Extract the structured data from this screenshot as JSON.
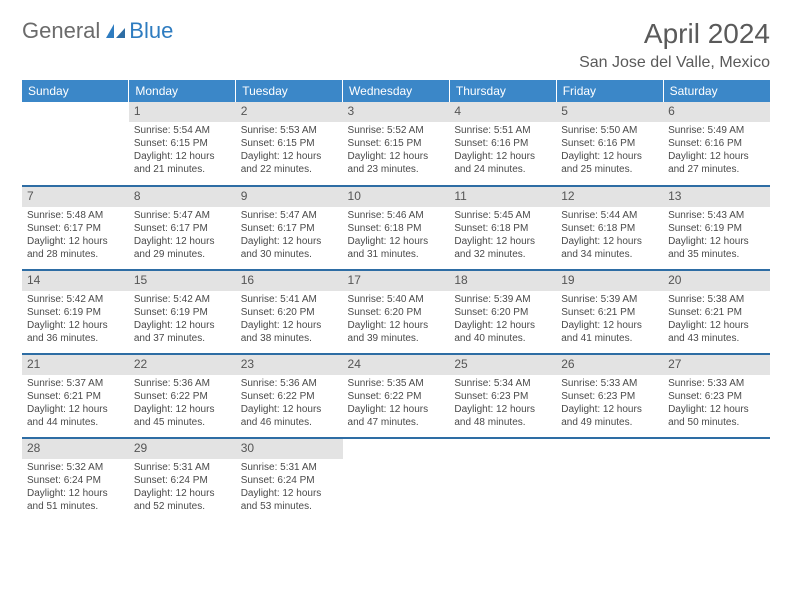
{
  "brand": {
    "part1": "General",
    "part2": "Blue"
  },
  "title": "April 2024",
  "location": "San Jose del Valle, Mexico",
  "colors": {
    "header_bg": "#3b87c8",
    "header_text": "#ffffff",
    "row_border": "#2e6da4",
    "daynum_bg": "#e3e3e3",
    "text": "#4a4a4a",
    "brand_blue": "#2e7cc0",
    "brand_gray": "#6b6b6b"
  },
  "weekdays": [
    "Sunday",
    "Monday",
    "Tuesday",
    "Wednesday",
    "Thursday",
    "Friday",
    "Saturday"
  ],
  "weeks": [
    [
      null,
      {
        "n": "1",
        "sr": "Sunrise: 5:54 AM",
        "ss": "Sunset: 6:15 PM",
        "d1": "Daylight: 12 hours",
        "d2": "and 21 minutes."
      },
      {
        "n": "2",
        "sr": "Sunrise: 5:53 AM",
        "ss": "Sunset: 6:15 PM",
        "d1": "Daylight: 12 hours",
        "d2": "and 22 minutes."
      },
      {
        "n": "3",
        "sr": "Sunrise: 5:52 AM",
        "ss": "Sunset: 6:15 PM",
        "d1": "Daylight: 12 hours",
        "d2": "and 23 minutes."
      },
      {
        "n": "4",
        "sr": "Sunrise: 5:51 AM",
        "ss": "Sunset: 6:16 PM",
        "d1": "Daylight: 12 hours",
        "d2": "and 24 minutes."
      },
      {
        "n": "5",
        "sr": "Sunrise: 5:50 AM",
        "ss": "Sunset: 6:16 PM",
        "d1": "Daylight: 12 hours",
        "d2": "and 25 minutes."
      },
      {
        "n": "6",
        "sr": "Sunrise: 5:49 AM",
        "ss": "Sunset: 6:16 PM",
        "d1": "Daylight: 12 hours",
        "d2": "and 27 minutes."
      }
    ],
    [
      {
        "n": "7",
        "sr": "Sunrise: 5:48 AM",
        "ss": "Sunset: 6:17 PM",
        "d1": "Daylight: 12 hours",
        "d2": "and 28 minutes."
      },
      {
        "n": "8",
        "sr": "Sunrise: 5:47 AM",
        "ss": "Sunset: 6:17 PM",
        "d1": "Daylight: 12 hours",
        "d2": "and 29 minutes."
      },
      {
        "n": "9",
        "sr": "Sunrise: 5:47 AM",
        "ss": "Sunset: 6:17 PM",
        "d1": "Daylight: 12 hours",
        "d2": "and 30 minutes."
      },
      {
        "n": "10",
        "sr": "Sunrise: 5:46 AM",
        "ss": "Sunset: 6:18 PM",
        "d1": "Daylight: 12 hours",
        "d2": "and 31 minutes."
      },
      {
        "n": "11",
        "sr": "Sunrise: 5:45 AM",
        "ss": "Sunset: 6:18 PM",
        "d1": "Daylight: 12 hours",
        "d2": "and 32 minutes."
      },
      {
        "n": "12",
        "sr": "Sunrise: 5:44 AM",
        "ss": "Sunset: 6:18 PM",
        "d1": "Daylight: 12 hours",
        "d2": "and 34 minutes."
      },
      {
        "n": "13",
        "sr": "Sunrise: 5:43 AM",
        "ss": "Sunset: 6:19 PM",
        "d1": "Daylight: 12 hours",
        "d2": "and 35 minutes."
      }
    ],
    [
      {
        "n": "14",
        "sr": "Sunrise: 5:42 AM",
        "ss": "Sunset: 6:19 PM",
        "d1": "Daylight: 12 hours",
        "d2": "and 36 minutes."
      },
      {
        "n": "15",
        "sr": "Sunrise: 5:42 AM",
        "ss": "Sunset: 6:19 PM",
        "d1": "Daylight: 12 hours",
        "d2": "and 37 minutes."
      },
      {
        "n": "16",
        "sr": "Sunrise: 5:41 AM",
        "ss": "Sunset: 6:20 PM",
        "d1": "Daylight: 12 hours",
        "d2": "and 38 minutes."
      },
      {
        "n": "17",
        "sr": "Sunrise: 5:40 AM",
        "ss": "Sunset: 6:20 PM",
        "d1": "Daylight: 12 hours",
        "d2": "and 39 minutes."
      },
      {
        "n": "18",
        "sr": "Sunrise: 5:39 AM",
        "ss": "Sunset: 6:20 PM",
        "d1": "Daylight: 12 hours",
        "d2": "and 40 minutes."
      },
      {
        "n": "19",
        "sr": "Sunrise: 5:39 AM",
        "ss": "Sunset: 6:21 PM",
        "d1": "Daylight: 12 hours",
        "d2": "and 41 minutes."
      },
      {
        "n": "20",
        "sr": "Sunrise: 5:38 AM",
        "ss": "Sunset: 6:21 PM",
        "d1": "Daylight: 12 hours",
        "d2": "and 43 minutes."
      }
    ],
    [
      {
        "n": "21",
        "sr": "Sunrise: 5:37 AM",
        "ss": "Sunset: 6:21 PM",
        "d1": "Daylight: 12 hours",
        "d2": "and 44 minutes."
      },
      {
        "n": "22",
        "sr": "Sunrise: 5:36 AM",
        "ss": "Sunset: 6:22 PM",
        "d1": "Daylight: 12 hours",
        "d2": "and 45 minutes."
      },
      {
        "n": "23",
        "sr": "Sunrise: 5:36 AM",
        "ss": "Sunset: 6:22 PM",
        "d1": "Daylight: 12 hours",
        "d2": "and 46 minutes."
      },
      {
        "n": "24",
        "sr": "Sunrise: 5:35 AM",
        "ss": "Sunset: 6:22 PM",
        "d1": "Daylight: 12 hours",
        "d2": "and 47 minutes."
      },
      {
        "n": "25",
        "sr": "Sunrise: 5:34 AM",
        "ss": "Sunset: 6:23 PM",
        "d1": "Daylight: 12 hours",
        "d2": "and 48 minutes."
      },
      {
        "n": "26",
        "sr": "Sunrise: 5:33 AM",
        "ss": "Sunset: 6:23 PM",
        "d1": "Daylight: 12 hours",
        "d2": "and 49 minutes."
      },
      {
        "n": "27",
        "sr": "Sunrise: 5:33 AM",
        "ss": "Sunset: 6:23 PM",
        "d1": "Daylight: 12 hours",
        "d2": "and 50 minutes."
      }
    ],
    [
      {
        "n": "28",
        "sr": "Sunrise: 5:32 AM",
        "ss": "Sunset: 6:24 PM",
        "d1": "Daylight: 12 hours",
        "d2": "and 51 minutes."
      },
      {
        "n": "29",
        "sr": "Sunrise: 5:31 AM",
        "ss": "Sunset: 6:24 PM",
        "d1": "Daylight: 12 hours",
        "d2": "and 52 minutes."
      },
      {
        "n": "30",
        "sr": "Sunrise: 5:31 AM",
        "ss": "Sunset: 6:24 PM",
        "d1": "Daylight: 12 hours",
        "d2": "and 53 minutes."
      },
      null,
      null,
      null,
      null
    ]
  ]
}
